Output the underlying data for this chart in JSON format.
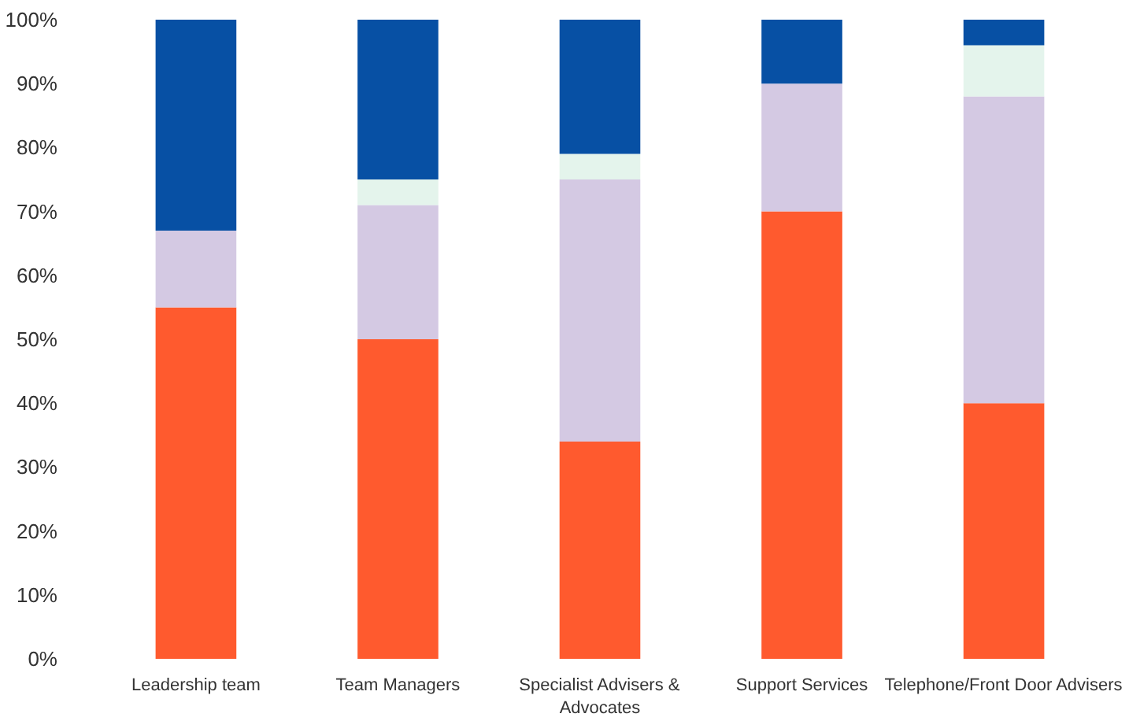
{
  "chart_data": {
    "type": "bar",
    "stacked": true,
    "categories": [
      "Leadership team",
      "Team Managers",
      "Specialist Advisers & Advocates",
      "Support Services",
      "Telephone/Front Door Advisers"
    ],
    "series": [
      {
        "color": "#ff5a2e",
        "values": [
          55,
          50,
          34,
          70,
          40
        ]
      },
      {
        "color": "#d4c9e3",
        "values": [
          12,
          21,
          41,
          20,
          48
        ]
      },
      {
        "color": "#e4f4ec",
        "values": [
          0,
          4,
          4,
          0,
          8
        ]
      },
      {
        "color": "#0750a4",
        "values": [
          33,
          25,
          21,
          10,
          4
        ]
      }
    ],
    "ylim": [
      0,
      100
    ],
    "yticks": [
      {
        "value": 0,
        "label": "0%"
      },
      {
        "value": 10,
        "label": "10%"
      },
      {
        "value": 20,
        "label": "20%"
      },
      {
        "value": 30,
        "label": "30%"
      },
      {
        "value": 40,
        "label": "40%"
      },
      {
        "value": 50,
        "label": "50%"
      },
      {
        "value": 60,
        "label": "60%"
      },
      {
        "value": 70,
        "label": "70%"
      },
      {
        "value": 80,
        "label": "80%"
      },
      {
        "value": 90,
        "label": "90%"
      },
      {
        "value": 100,
        "label": "100%"
      }
    ],
    "grid": false
  }
}
